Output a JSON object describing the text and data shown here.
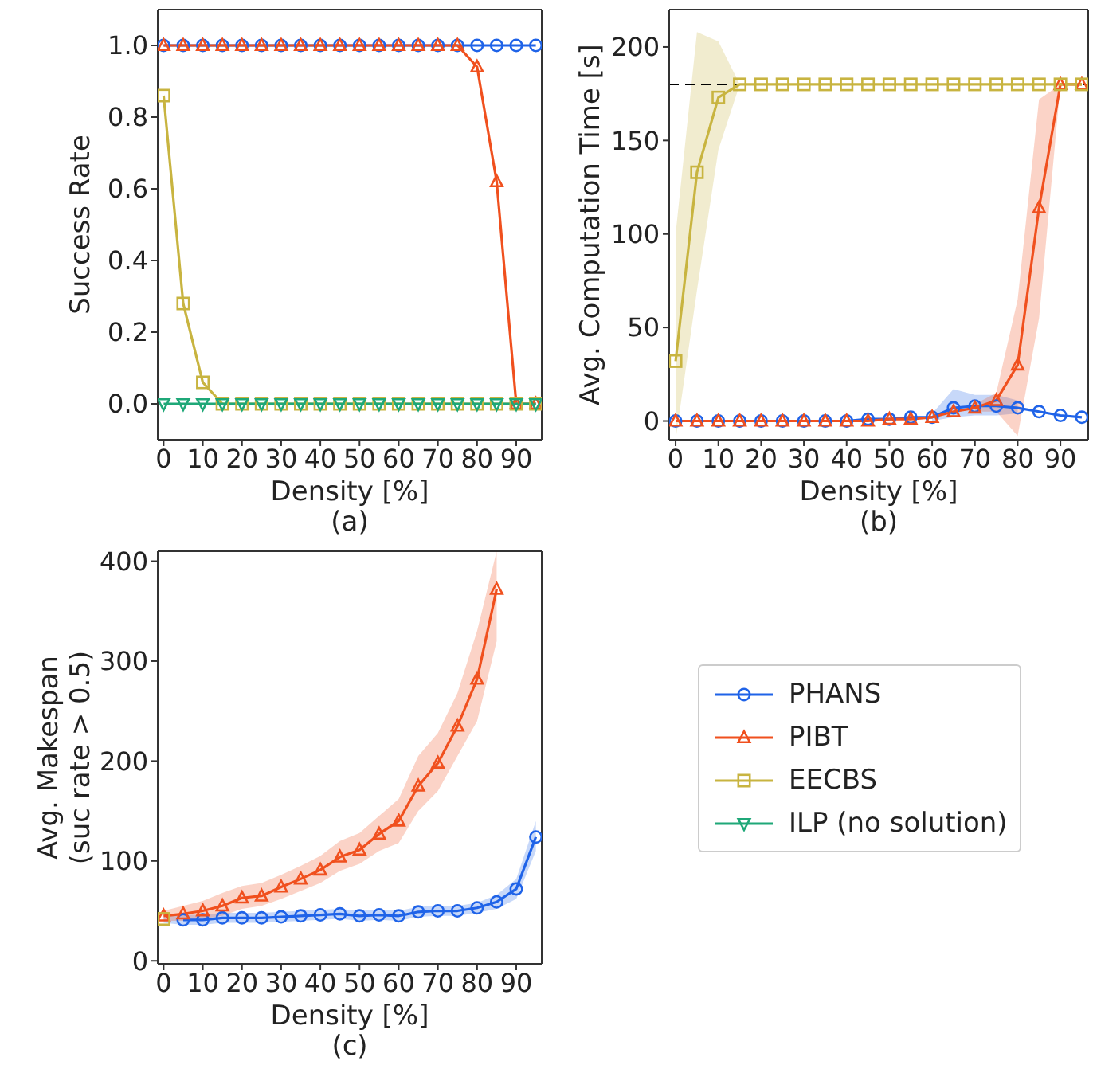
{
  "chart_data": [
    {
      "type": "line",
      "xlabel": "Density [%]",
      "ylabel": "Success Rate",
      "annotations": [
        "(a)"
      ],
      "x": [
        0,
        5,
        10,
        15,
        20,
        25,
        30,
        35,
        40,
        45,
        50,
        55,
        60,
        65,
        70,
        75,
        80,
        85,
        90,
        95
      ],
      "xlim": [
        -1.5,
        96.5
      ],
      "xticks": [
        0,
        10,
        20,
        30,
        40,
        50,
        60,
        70,
        80,
        90
      ],
      "ylim": [
        -0.1,
        1.1
      ],
      "yticks": [
        {
          "value": 0,
          "label": "0.0"
        },
        {
          "value": 0.2,
          "label": "0.2"
        },
        {
          "value": 0.4,
          "label": "0.4"
        },
        {
          "value": 0.6,
          "label": "0.6"
        },
        {
          "value": 0.8,
          "label": "0.8"
        },
        {
          "value": 1,
          "label": "1.0"
        }
      ],
      "grid": false,
      "legend": "bottom right",
      "line_style": "solid",
      "series": [
        {
          "name": "PHANS",
          "color": "#1f63e8",
          "marker": "circle",
          "values": [
            1,
            1,
            1,
            1,
            1,
            1,
            1,
            1,
            1,
            1,
            1,
            1,
            1,
            1,
            1,
            1,
            1,
            1,
            1,
            1
          ]
        },
        {
          "name": "PIBT",
          "color": "#f0501e",
          "marker": "triangle",
          "values": [
            1,
            1,
            1,
            1,
            1,
            1,
            1,
            1,
            1,
            1,
            1,
            1,
            1,
            1,
            1,
            1,
            0.94,
            0.62,
            0,
            0
          ]
        },
        {
          "name": "EECBS",
          "color": "#c8b440",
          "marker": "square",
          "values": [
            0.86,
            0.28,
            0.06,
            0,
            0,
            0,
            0,
            0,
            0,
            0,
            0,
            0,
            0,
            0,
            0,
            0,
            0,
            0,
            0,
            0
          ]
        },
        {
          "name": "ILP (no solution)",
          "color": "#1fa878",
          "marker": "triangle_down",
          "values": [
            0,
            0,
            0,
            0,
            0,
            0,
            0,
            0,
            0,
            0,
            0,
            0,
            0,
            0,
            0,
            0,
            0,
            0,
            0,
            0
          ]
        }
      ]
    },
    {
      "type": "line",
      "xlabel": "Density [%]",
      "ylabel": "Avg. Computation Time [s]",
      "annotations": [
        "(b)"
      ],
      "x": [
        0,
        5,
        10,
        15,
        20,
        25,
        30,
        35,
        40,
        45,
        50,
        55,
        60,
        65,
        70,
        75,
        80,
        85,
        90,
        95
      ],
      "xlim": [
        -1.5,
        96.5
      ],
      "xticks": [
        0,
        10,
        20,
        30,
        40,
        50,
        60,
        70,
        80,
        90
      ],
      "ylim": [
        -10,
        220
      ],
      "yticks": [
        0,
        50,
        100,
        150,
        200
      ],
      "grid": false,
      "line_style": "solid",
      "ref_lines": [
        {
          "axis": "y",
          "value": 180,
          "color": "#000000",
          "line_style": "dashed"
        }
      ],
      "series": [
        {
          "color": "#1f63e8",
          "marker": "circle",
          "values": [
            0,
            0,
            0,
            0,
            0,
            0,
            0,
            0,
            0,
            1,
            1,
            2,
            2,
            7,
            8,
            8,
            7,
            5,
            3,
            2
          ],
          "lower": [
            null,
            null,
            null,
            null,
            null,
            null,
            null,
            null,
            null,
            null,
            null,
            null,
            0,
            2,
            3,
            3,
            4,
            null,
            null,
            null
          ],
          "upper": [
            null,
            null,
            null,
            null,
            null,
            null,
            null,
            null,
            null,
            null,
            null,
            null,
            4,
            17,
            14,
            14,
            11,
            null,
            null,
            null
          ]
        },
        {
          "color": "#f0501e",
          "marker": "triangle",
          "values": [
            0,
            0,
            0,
            0,
            0,
            0,
            0,
            0,
            0,
            0,
            1,
            1,
            2,
            5,
            7,
            11,
            30,
            114,
            180,
            180
          ],
          "lower": [
            null,
            null,
            null,
            null,
            null,
            null,
            null,
            null,
            null,
            null,
            null,
            null,
            null,
            null,
            5,
            5,
            -8,
            55,
            180,
            null
          ],
          "upper": [
            null,
            null,
            null,
            null,
            null,
            null,
            null,
            null,
            null,
            null,
            null,
            null,
            null,
            null,
            9,
            15,
            65,
            172,
            180,
            null
          ]
        },
        {
          "color": "#c8b440",
          "marker": "square",
          "values": [
            32,
            133,
            173,
            180,
            180,
            180,
            180,
            180,
            180,
            180,
            180,
            180,
            180,
            180,
            180,
            180,
            180,
            180,
            180,
            180
          ],
          "lower": [
            -10,
            70,
            145,
            180,
            180,
            180,
            180,
            180,
            180,
            180,
            180,
            180,
            180,
            180,
            180,
            180,
            180,
            180,
            180,
            180
          ],
          "upper": [
            100,
            208,
            203,
            180,
            180,
            180,
            180,
            180,
            180,
            180,
            180,
            180,
            180,
            180,
            180,
            180,
            180,
            180,
            180,
            180
          ]
        }
      ]
    },
    {
      "type": "line",
      "xlabel": "Density [%]",
      "ylabel": "Avg. Makespan\n(suc rate > 0.5)",
      "annotations": [
        "(c)"
      ],
      "x": [
        0,
        5,
        10,
        15,
        20,
        25,
        30,
        35,
        40,
        45,
        50,
        55,
        60,
        65,
        70,
        75,
        80,
        85,
        90,
        95
      ],
      "xlim": [
        -1.5,
        96.5
      ],
      "xticks": [
        0,
        10,
        20,
        30,
        40,
        50,
        60,
        70,
        80,
        90
      ],
      "ylim": [
        -3,
        410
      ],
      "yticks": [
        0,
        100,
        200,
        300,
        400
      ],
      "grid": false,
      "line_style": "solid",
      "series": [
        {
          "color": "#1f63e8",
          "marker": "circle",
          "values": [
            null,
            41,
            41,
            43,
            43,
            43,
            44,
            45,
            46,
            47,
            45,
            46,
            45,
            49,
            50,
            50,
            53,
            59,
            72,
            124
          ],
          "lower": [
            38,
            36,
            36,
            38,
            38,
            38,
            39,
            40,
            41,
            42,
            40,
            41,
            40,
            44,
            45,
            45,
            48,
            52,
            62,
            110
          ],
          "upper": [
            48,
            46,
            46,
            48,
            48,
            48,
            49,
            50,
            51,
            52,
            50,
            51,
            50,
            54,
            55,
            55,
            58,
            66,
            82,
            140
          ]
        },
        {
          "color": "#f0501e",
          "marker": "triangle",
          "values": [
            45,
            47,
            50,
            55,
            63,
            65,
            74,
            82,
            91,
            104,
            111,
            127,
            140,
            175,
            198,
            235,
            282,
            372,
            null,
            null
          ],
          "lower": [
            40,
            40,
            42,
            45,
            52,
            55,
            62,
            70,
            78,
            90,
            97,
            110,
            118,
            150,
            170,
            205,
            240,
            320,
            null,
            null
          ],
          "upper": [
            50,
            55,
            60,
            68,
            75,
            78,
            86,
            95,
            105,
            120,
            128,
            145,
            162,
            205,
            228,
            268,
            330,
            410,
            null,
            null
          ]
        },
        {
          "color": "#c8b440",
          "marker": "square",
          "values": [
            42,
            null,
            null,
            null,
            null,
            null,
            null,
            null,
            null,
            null,
            null,
            null,
            null,
            null,
            null,
            null,
            null,
            null,
            null,
            null
          ]
        }
      ]
    }
  ]
}
